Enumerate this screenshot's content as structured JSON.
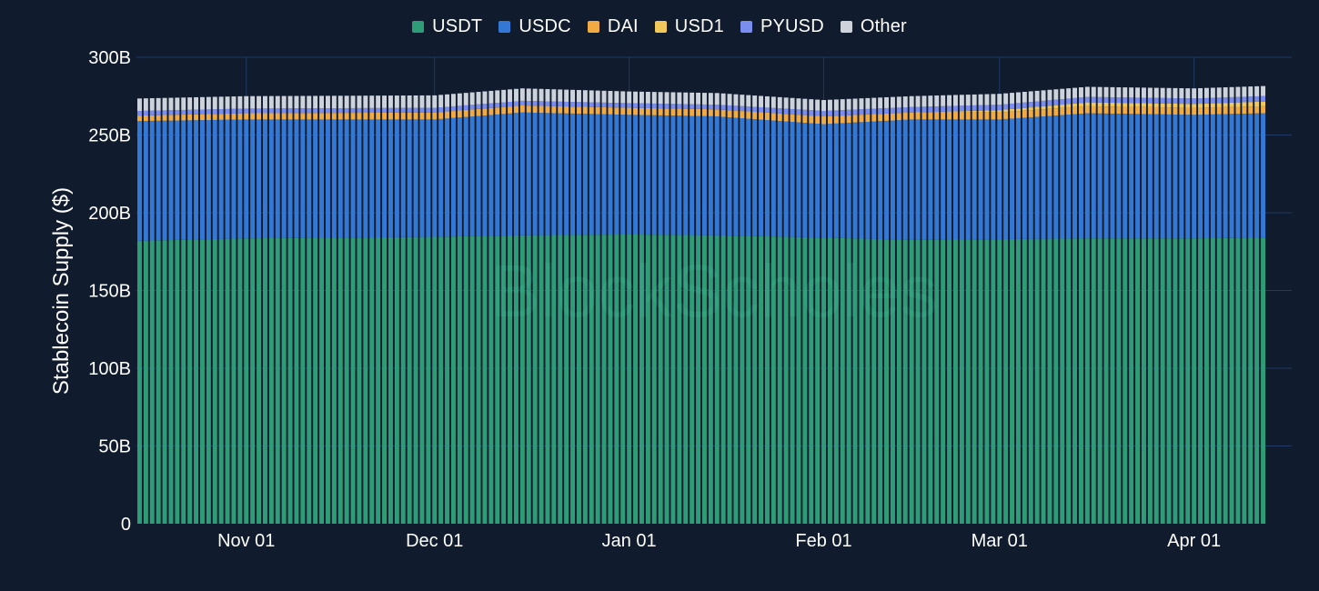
{
  "chart_data": {
    "type": "bar",
    "stacked": true,
    "watermark": "BlockScholes",
    "ylabel": "Stablecoin Supply ($)",
    "ylim": [
      0,
      300
    ],
    "yticks": [
      {
        "value": 0,
        "label": "0"
      },
      {
        "value": 50,
        "label": "50B"
      },
      {
        "value": 100,
        "label": "100B"
      },
      {
        "value": 150,
        "label": "150B"
      },
      {
        "value": 200,
        "label": "200B"
      },
      {
        "value": 250,
        "label": "250B"
      },
      {
        "value": 300,
        "label": "300B"
      }
    ],
    "x_range": [
      "2024-10-15",
      "2025-04-12"
    ],
    "xticks": [
      {
        "date": "2024-11-01",
        "label": "Nov 01"
      },
      {
        "date": "2024-12-01",
        "label": "Dec 01"
      },
      {
        "date": "2025-01-01",
        "label": "Jan 01"
      },
      {
        "date": "2025-02-01",
        "label": "Feb 01"
      },
      {
        "date": "2025-03-01",
        "label": "Mar 01"
      },
      {
        "date": "2025-04-01",
        "label": "Apr 01"
      }
    ],
    "grid": "vertical lines at date ticks, horizontal lines at value ticks",
    "legend_position": "top-center",
    "series_meta": [
      {
        "name": "USDT",
        "color": "#2e9c76"
      },
      {
        "name": "USDC",
        "color": "#3478d6"
      },
      {
        "name": "DAI",
        "color": "#f0ab45"
      },
      {
        "name": "USD1",
        "color": "#f2c85a"
      },
      {
        "name": "PYUSD",
        "color": "#7b8ef0"
      },
      {
        "name": "Other",
        "color": "#cdd2db"
      }
    ],
    "units": "billions USD",
    "sample_dates": [
      "2024-10-15",
      "2024-11-01",
      "2024-12-01",
      "2024-12-15",
      "2025-01-01",
      "2025-01-15",
      "2025-02-01",
      "2025-02-15",
      "2025-03-01",
      "2025-03-15",
      "2025-04-01",
      "2025-04-12"
    ],
    "series": [
      {
        "name": "USDT",
        "values": [
          182,
          183.5,
          184.5,
          185.5,
          186,
          185.5,
          184,
          182.5,
          183,
          183.5,
          183.5,
          184
        ]
      },
      {
        "name": "USDC",
        "values": [
          77,
          76.5,
          75.5,
          79,
          77,
          76.5,
          73,
          77.5,
          77,
          80.5,
          79.5,
          80
        ]
      },
      {
        "name": "DAI",
        "values": [
          3.5,
          4,
          4.5,
          4.5,
          4.5,
          4.5,
          5,
          4.5,
          4.5,
          4.5,
          4.5,
          4.5
        ]
      },
      {
        "name": "USD1",
        "values": [
          0,
          0,
          0,
          0,
          0,
          0,
          0,
          0,
          1.5,
          2.5,
          2.5,
          3
        ]
      },
      {
        "name": "PYUSD",
        "values": [
          3,
          3,
          3,
          3,
          3,
          3,
          3.5,
          3.5,
          3.5,
          3.5,
          3.5,
          3.5
        ]
      },
      {
        "name": "Other",
        "values": [
          8,
          8,
          8,
          8,
          7.5,
          7.5,
          7,
          7,
          7,
          6.5,
          6.5,
          6.5
        ]
      }
    ]
  }
}
